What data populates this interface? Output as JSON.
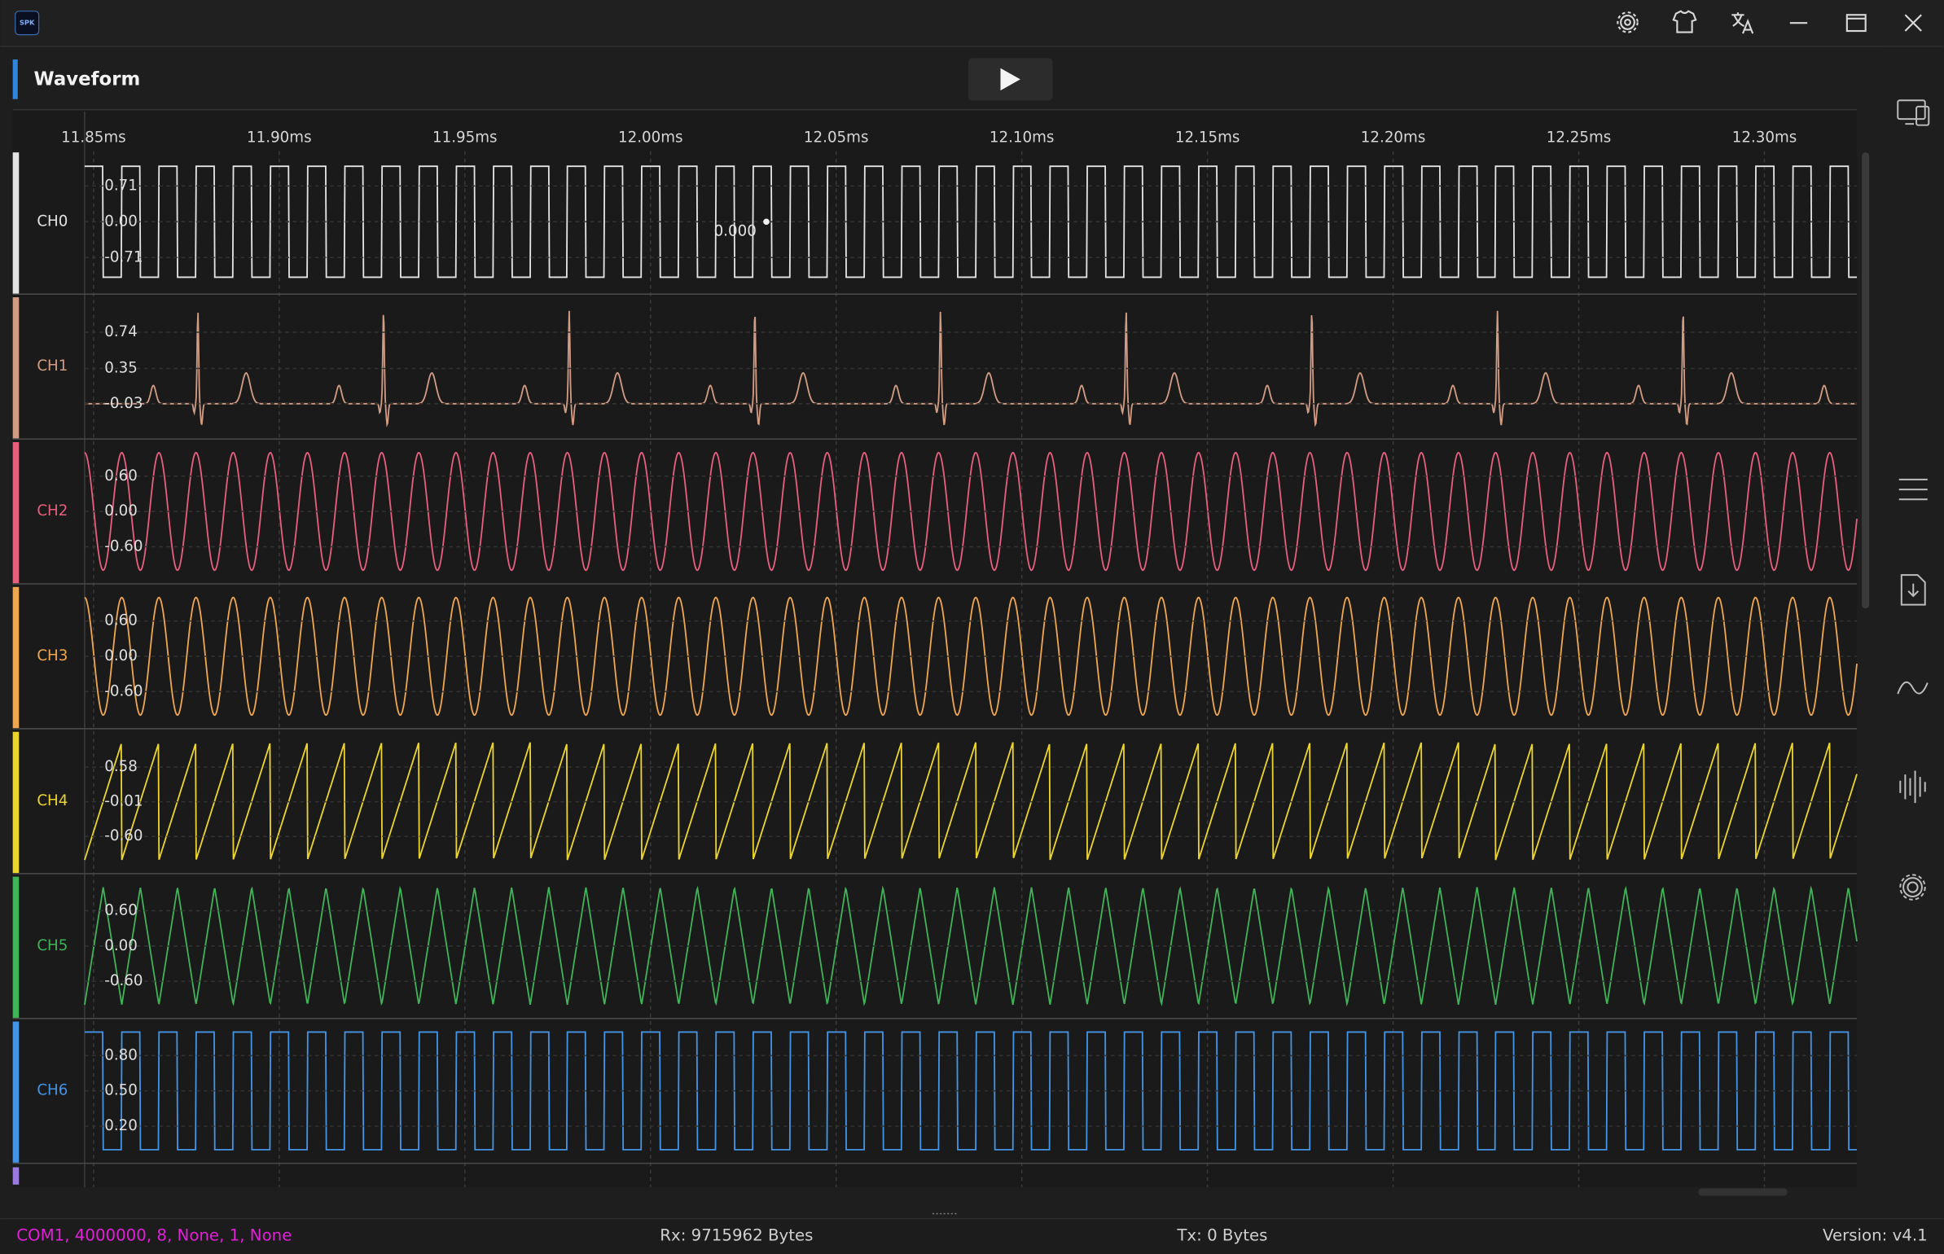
{
  "app": {
    "logo": "SPK"
  },
  "header": {
    "title": "Waveform"
  },
  "chart_data": {
    "type": "waveform",
    "xlim": [
      11.8476,
      12.3249
    ],
    "xticks": [
      {
        "value": 11.85,
        "label": "11.85ms"
      },
      {
        "value": 11.9,
        "label": "11.90ms"
      },
      {
        "value": 11.95,
        "label": "11.95ms"
      },
      {
        "value": 12.0,
        "label": "12.00ms"
      },
      {
        "value": 12.05,
        "label": "12.05ms"
      },
      {
        "value": 12.1,
        "label": "12.10ms"
      },
      {
        "value": 12.15,
        "label": "12.15ms"
      },
      {
        "value": 12.2,
        "label": "12.20ms"
      },
      {
        "value": 12.25,
        "label": "12.25ms"
      },
      {
        "value": 12.3,
        "label": "12.30ms"
      }
    ],
    "grid": true,
    "channels": [
      {
        "name": "CH0",
        "color": "#e4e4e4",
        "shape": "square",
        "period": 0.01,
        "range": [
          -1.1,
          1.1
        ],
        "ylim": [
          -1.4,
          1.4
        ],
        "yticks": [
          0.71,
          {
            "value": 0,
            "label": "0.00"
          },
          -0.71
        ]
      },
      {
        "name": "CH1",
        "color": "#d29c84",
        "shape": "ecg",
        "period": 0.05,
        "range": [
          -0.26,
          0.97
        ],
        "ylim": [
          -0.39,
          1.13
        ],
        "yticks": [
          0.74,
          0.35,
          -0.03
        ]
      },
      {
        "name": "CH2",
        "color": "#e65f7c",
        "shape": "sine",
        "period": 0.01,
        "range": [
          -1.0,
          1.0
        ],
        "ylim": [
          -1.2,
          1.2
        ],
        "yticks": [
          {
            "value": 0.6,
            "label": "0.60"
          },
          {
            "value": 0,
            "label": "0.00"
          },
          {
            "value": -0.6,
            "label": "-0.60"
          }
        ]
      },
      {
        "name": "CH3",
        "color": "#eea650",
        "shape": "sine",
        "period": 0.01,
        "range": [
          -1.0,
          1.0
        ],
        "ylim": [
          -1.2,
          1.2
        ],
        "yticks": [
          {
            "value": 0.6,
            "label": "0.60"
          },
          {
            "value": 0,
            "label": "0.00"
          },
          {
            "value": -0.6,
            "label": "-0.60"
          }
        ]
      },
      {
        "name": "CH4",
        "color": "#ecd42e",
        "shape": "sawtooth",
        "period": 0.01,
        "range": [
          -1.0,
          1.0
        ],
        "ylim": [
          -1.2,
          1.2
        ],
        "yticks": [
          0.58,
          -0.01,
          {
            "value": -0.6,
            "label": "-0.60"
          }
        ]
      },
      {
        "name": "CH5",
        "color": "#40b258",
        "shape": "triangle",
        "period": 0.01,
        "range": [
          -1.0,
          1.0
        ],
        "ylim": [
          -1.2,
          1.2
        ],
        "yticks": [
          {
            "value": 0.6,
            "label": "0.60"
          },
          {
            "value": 0,
            "label": "0.00"
          },
          {
            "value": -0.6,
            "label": "-0.60"
          }
        ]
      },
      {
        "name": "CH6",
        "color": "#4494e6",
        "shape": "square",
        "period": 0.01,
        "range": [
          0,
          1
        ],
        "ylim": [
          -0.1,
          1.1
        ],
        "yticks": [
          {
            "value": 0.8,
            "label": "0.80"
          },
          {
            "value": 0.5,
            "label": "0.50"
          },
          {
            "value": 0.2,
            "label": "0.20"
          }
        ]
      }
    ],
    "cursor": {
      "x": 12.0312,
      "y": {
        "value": 0,
        "label": "0.000"
      }
    }
  },
  "status_bar": {
    "port": "COM1, 4000000, 8, None, 1, None",
    "rx": "Rx: 9715962 Bytes",
    "tx": "Tx: 0 Bytes",
    "version": "Version: v4.1"
  }
}
